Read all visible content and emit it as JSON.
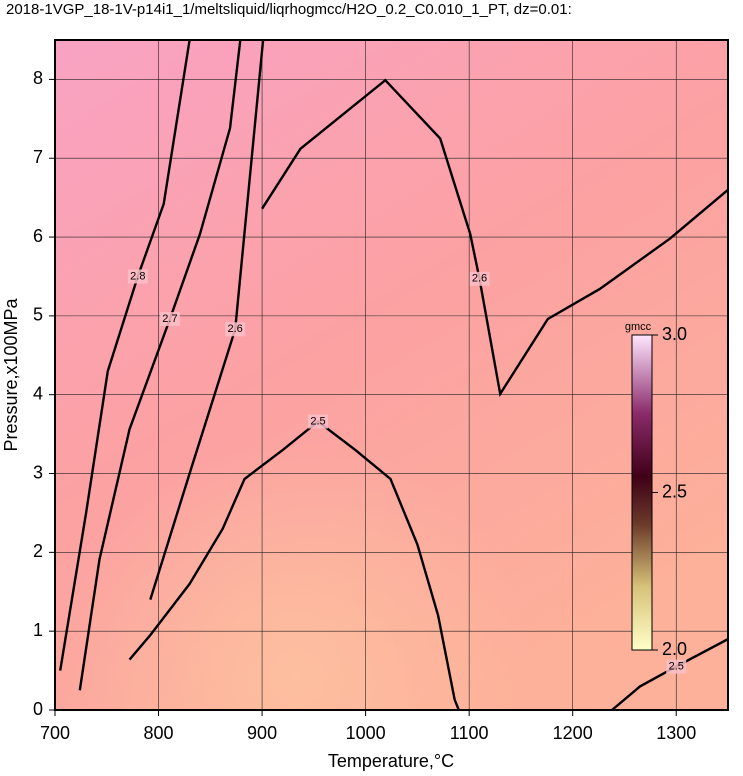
{
  "chart_data": {
    "type": "contour",
    "title": "2018-1VGP_18-1V-p14i1_1/meltsliquid/liqrhogmcc/H2O_0.2_C0.010_1_PT, dz=0.01:",
    "xlabel": "Temperature,°C",
    "ylabel": "Pressure,x100MPa",
    "xlim": [
      700,
      1350
    ],
    "ylim": [
      0,
      8.5
    ],
    "xticks": [
      700,
      800,
      900,
      1000,
      1100,
      1200,
      1300
    ],
    "yticks": [
      0,
      1,
      2,
      3,
      4,
      5,
      6,
      7,
      8
    ],
    "grid": true,
    "contours": [
      {
        "level": 2.5,
        "x": [
          772,
          792,
          830,
          862,
          883,
          920,
          954,
          990,
          1024,
          1050,
          1070,
          1086,
          1090
        ],
        "y": [
          0.64,
          0.95,
          1.6,
          2.3,
          2.93,
          3.3,
          3.66,
          3.3,
          2.93,
          2.1,
          1.2,
          0.13,
          0
        ]
      },
      {
        "level": 2.5,
        "x": [
          1238,
          1265,
          1300,
          1350
        ],
        "y": [
          0,
          0.3,
          0.55,
          0.9
        ]
      },
      {
        "level": 2.6,
        "x": [
          792,
          830,
          874,
          888,
          901
        ],
        "y": [
          1.4,
          3.0,
          4.83,
          6.74,
          8.5
        ]
      },
      {
        "level": 2.6,
        "x": [
          900,
          937,
          1019,
          1072,
          1101,
          1110,
          1130,
          1176,
          1226,
          1294,
          1350
        ],
        "y": [
          6.36,
          7.12,
          7.99,
          7.25,
          6.04,
          5.47,
          4.01,
          4.96,
          5.34,
          5.98,
          6.6
        ]
      },
      {
        "level": 2.7,
        "x": [
          724,
          743,
          772,
          811,
          840,
          869,
          879
        ],
        "y": [
          0.25,
          1.91,
          3.56,
          4.96,
          6.04,
          7.38,
          8.5
        ]
      },
      {
        "level": 2.8,
        "x": [
          705,
          730,
          751,
          780,
          805,
          830
        ],
        "y": [
          0.5,
          2.5,
          4.3,
          5.5,
          6.42,
          8.5
        ]
      }
    ],
    "colorbar": {
      "label": "gmcc",
      "clim": [
        2.0,
        3.0
      ],
      "ticks": [
        {
          "value": 2.0,
          "label": "2.0"
        },
        2.5,
        {
          "value": 3.0,
          "label": "3.0"
        }
      ]
    }
  }
}
